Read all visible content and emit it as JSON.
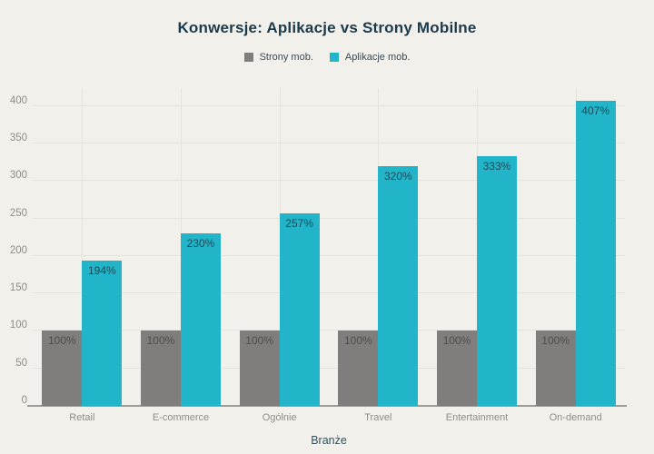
{
  "chart_data": {
    "type": "bar",
    "title": "Konwersje: Aplikacje vs Strony Mobilne",
    "xlabel": "Branże",
    "ylabel": "",
    "categories": [
      "Retail",
      "E-commerce",
      "Ogólnie",
      "Travel",
      "Entertainment",
      "On-demand"
    ],
    "series": [
      {
        "name": "Strony mob.",
        "color": "#7f7e7c",
        "label_color": "#4e4d4b",
        "values": [
          100,
          100,
          100,
          100,
          100,
          100
        ],
        "labels": [
          "100%",
          "100%",
          "100%",
          "100%",
          "100%",
          "100%"
        ]
      },
      {
        "name": "Aplikacje mob.",
        "color": "#22b4c9",
        "label_color": "#1c4a57",
        "values": [
          194,
          230,
          257,
          320,
          333,
          407
        ],
        "labels": [
          "194%",
          "230%",
          "257%",
          "320%",
          "333%",
          "407%"
        ]
      }
    ],
    "ylim": [
      0,
      424
    ],
    "yticks": [
      0,
      50,
      100,
      150,
      200,
      250,
      300,
      350,
      400
    ],
    "grid": true,
    "legend_position": "top"
  },
  "colors": {
    "background": "#f1f0ea",
    "gridline": "#e4e3dd",
    "axis_line": "#9c9b97",
    "title_text": "#1b3a4b",
    "tick_text": "#8e8d89",
    "category_text": "#8f8e8a",
    "xlabel_text": "#33505d"
  }
}
